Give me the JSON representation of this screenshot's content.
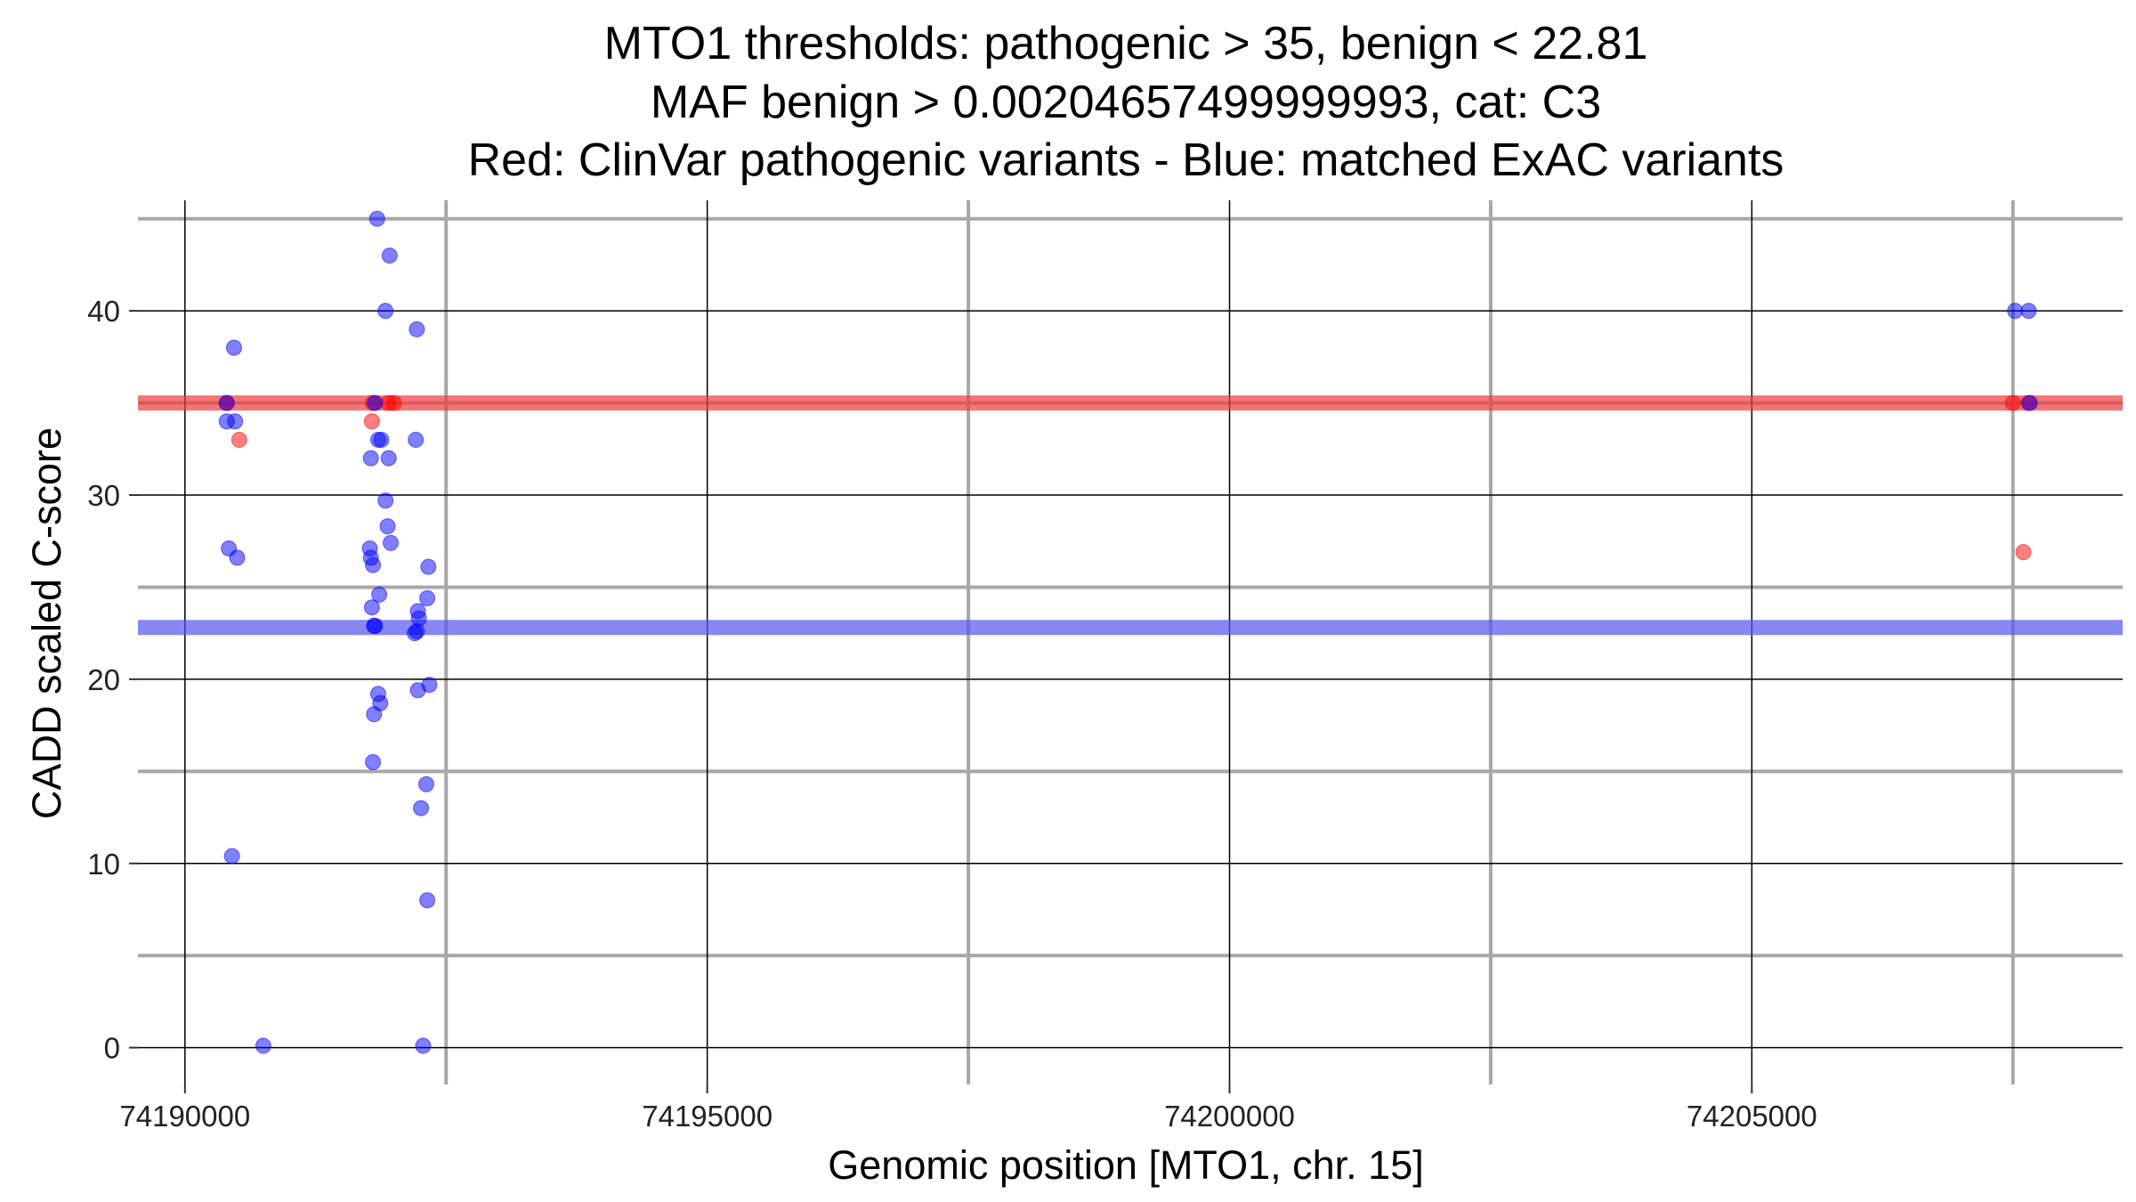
{
  "chart_data": {
    "type": "scatter",
    "title_lines": [
      "MTO1 thresholds: pathogenic > 35, benign < 22.81",
      "MAF benign > 0.00204657499999993, cat: C3",
      "Red: ClinVar pathogenic variants - Blue: matched ExAC variants"
    ],
    "xlabel": "Genomic position [MTO1, chr. 15]",
    "ylabel": "CADD scaled C-score",
    "xlim": [
      74189550,
      74208550
    ],
    "ylim": [
      -2,
      46
    ],
    "x_ticks": [
      {
        "value": 74190000,
        "label": "74190000"
      },
      {
        "value": 74195000,
        "label": "74195000"
      },
      {
        "value": 74200000,
        "label": "74200000"
      },
      {
        "value": 74205000,
        "label": "74205000"
      }
    ],
    "x_minor_gridlines": [
      74192500,
      74197500,
      74202500,
      74207500
    ],
    "y_ticks": [
      {
        "value": 0,
        "label": "0"
      },
      {
        "value": 10,
        "label": "10"
      },
      {
        "value": 20,
        "label": "20"
      },
      {
        "value": 30,
        "label": "30"
      },
      {
        "value": 40,
        "label": "40"
      }
    ],
    "y_minor_gridlines": [
      5,
      15,
      25,
      35,
      45
    ],
    "thresholds": [
      {
        "name": "pathogenic",
        "value": 35,
        "color": "#ee3b3b"
      },
      {
        "name": "benign",
        "value": 22.81,
        "color": "#5555ee"
      }
    ],
    "colors": {
      "pathogenic": "#ff0000",
      "benign": "#0000ff"
    },
    "series": [
      {
        "name": "ClinVar pathogenic variants",
        "color": "#ff0000",
        "points": [
          {
            "x": 74190400,
            "y": 35
          },
          {
            "x": 74190520,
            "y": 33
          },
          {
            "x": 74191800,
            "y": 35
          },
          {
            "x": 74191790,
            "y": 34
          },
          {
            "x": 74191950,
            "y": 35
          },
          {
            "x": 74192000,
            "y": 35
          },
          {
            "x": 74207500,
            "y": 35
          },
          {
            "x": 74207650,
            "y": 35
          },
          {
            "x": 74207600,
            "y": 26.9
          }
        ]
      },
      {
        "name": "matched ExAC variants",
        "color": "#0000ff",
        "points": [
          {
            "x": 74190400,
            "y": 35
          },
          {
            "x": 74190400,
            "y": 34
          },
          {
            "x": 74190480,
            "y": 34
          },
          {
            "x": 74190470,
            "y": 38
          },
          {
            "x": 74190420,
            "y": 27.1
          },
          {
            "x": 74190500,
            "y": 26.6
          },
          {
            "x": 74190450,
            "y": 10.4
          },
          {
            "x": 74190750,
            "y": 0.1
          },
          {
            "x": 74191840,
            "y": 45
          },
          {
            "x": 74191960,
            "y": 43
          },
          {
            "x": 74191920,
            "y": 40
          },
          {
            "x": 74192220,
            "y": 39
          },
          {
            "x": 74191820,
            "y": 35
          },
          {
            "x": 74191850,
            "y": 33
          },
          {
            "x": 74191880,
            "y": 33
          },
          {
            "x": 74192210,
            "y": 33
          },
          {
            "x": 74191780,
            "y": 32
          },
          {
            "x": 74191950,
            "y": 32
          },
          {
            "x": 74191920,
            "y": 29.7
          },
          {
            "x": 74191940,
            "y": 28.3
          },
          {
            "x": 74191970,
            "y": 27.4
          },
          {
            "x": 74191770,
            "y": 27.1
          },
          {
            "x": 74191780,
            "y": 26.6
          },
          {
            "x": 74191800,
            "y": 26.2
          },
          {
            "x": 74192330,
            "y": 26.1
          },
          {
            "x": 74191860,
            "y": 24.6
          },
          {
            "x": 74192320,
            "y": 24.4
          },
          {
            "x": 74191790,
            "y": 23.9
          },
          {
            "x": 74192230,
            "y": 23.7
          },
          {
            "x": 74192240,
            "y": 23.3
          },
          {
            "x": 74191810,
            "y": 22.9
          },
          {
            "x": 74191820,
            "y": 22.9
          },
          {
            "x": 74192200,
            "y": 22.5
          },
          {
            "x": 74192220,
            "y": 22.6
          },
          {
            "x": 74192340,
            "y": 19.7
          },
          {
            "x": 74192230,
            "y": 19.4
          },
          {
            "x": 74191850,
            "y": 19.2
          },
          {
            "x": 74191870,
            "y": 18.7
          },
          {
            "x": 74191810,
            "y": 18.1
          },
          {
            "x": 74191800,
            "y": 15.5
          },
          {
            "x": 74192310,
            "y": 14.3
          },
          {
            "x": 74192260,
            "y": 13
          },
          {
            "x": 74192320,
            "y": 8
          },
          {
            "x": 74192280,
            "y": 0.1
          },
          {
            "x": 74207520,
            "y": 40
          },
          {
            "x": 74207650,
            "y": 40
          },
          {
            "x": 74207660,
            "y": 35
          }
        ]
      }
    ]
  }
}
